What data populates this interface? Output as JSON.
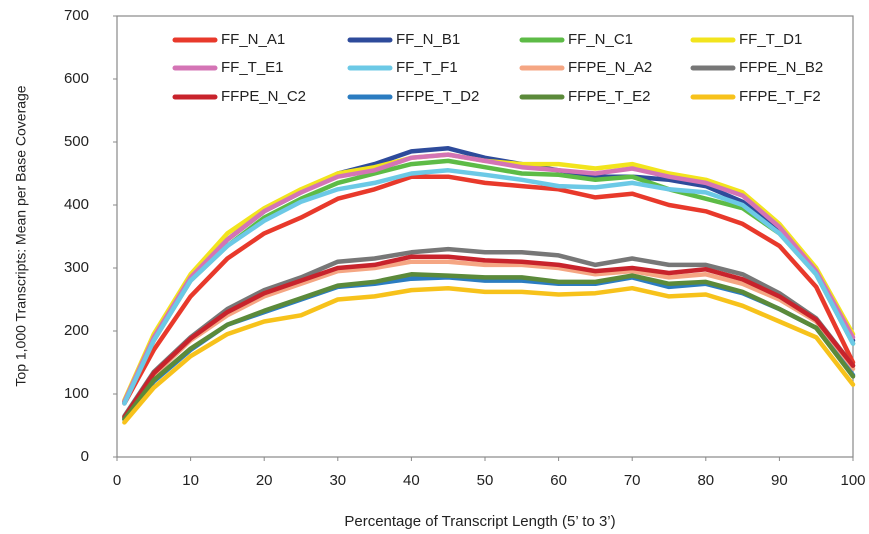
{
  "chart_data": {
    "type": "line",
    "x_label": "Percentage of Transcript Length (5’ to 3’)",
    "y_label": "Top 1,000 Transcripts: Mean per Base Coverage",
    "x": [
      1,
      5,
      10,
      15,
      20,
      25,
      30,
      35,
      40,
      45,
      50,
      55,
      60,
      65,
      70,
      75,
      80,
      85,
      90,
      95,
      100
    ],
    "xlim": [
      0,
      100
    ],
    "xticks": [
      0,
      10,
      20,
      30,
      40,
      50,
      60,
      70,
      80,
      90,
      100
    ],
    "ylim": [
      0,
      700
    ],
    "yticks": [
      0,
      100,
      200,
      300,
      400,
      500,
      600,
      700
    ],
    "grid": false,
    "series": [
      {
        "name": "FF_N_A1",
        "color": "#e8392b",
        "values": [
          85,
          170,
          255,
          315,
          355,
          380,
          410,
          425,
          445,
          445,
          435,
          430,
          425,
          412,
          418,
          400,
          390,
          370,
          335,
          270,
          150
        ]
      },
      {
        "name": "FF_N_B1",
        "color": "#2e4b9b",
        "values": [
          88,
          190,
          285,
          345,
          390,
          420,
          450,
          465,
          485,
          490,
          475,
          465,
          455,
          445,
          445,
          440,
          430,
          405,
          360,
          295,
          185
        ]
      },
      {
        "name": "FF_N_C1",
        "color": "#5dbb46",
        "values": [
          88,
          185,
          280,
          335,
          380,
          410,
          435,
          450,
          465,
          470,
          460,
          450,
          448,
          440,
          445,
          425,
          410,
          395,
          355,
          290,
          180
        ]
      },
      {
        "name": "FF_T_D1",
        "color": "#f2e41d",
        "values": [
          90,
          195,
          290,
          355,
          395,
          425,
          450,
          460,
          475,
          480,
          470,
          465,
          465,
          458,
          465,
          450,
          440,
          420,
          370,
          300,
          195
        ]
      },
      {
        "name": "FF_T_E1",
        "color": "#d474b5",
        "values": [
          88,
          190,
          285,
          345,
          390,
          420,
          445,
          455,
          475,
          480,
          470,
          460,
          455,
          450,
          458,
          445,
          435,
          415,
          365,
          295,
          190
        ]
      },
      {
        "name": "FF_T_F1",
        "color": "#6cc9e6",
        "values": [
          85,
          185,
          280,
          335,
          375,
          405,
          425,
          435,
          450,
          455,
          448,
          440,
          430,
          428,
          435,
          425,
          420,
          400,
          355,
          290,
          180
        ]
      },
      {
        "name": "FFPE_N_A2",
        "color": "#f5a683",
        "values": [
          62,
          130,
          185,
          225,
          255,
          275,
          295,
          300,
          310,
          310,
          305,
          305,
          300,
          290,
          295,
          285,
          290,
          275,
          250,
          215,
          140
        ]
      },
      {
        "name": "FFPE_N_B2",
        "color": "#777777",
        "values": [
          65,
          135,
          190,
          235,
          265,
          285,
          310,
          315,
          325,
          330,
          325,
          325,
          320,
          305,
          315,
          305,
          305,
          290,
          260,
          220,
          145
        ]
      },
      {
        "name": "FFPE_N_C2",
        "color": "#c8232c",
        "values": [
          63,
          133,
          188,
          230,
          260,
          280,
          300,
          305,
          318,
          318,
          312,
          310,
          305,
          295,
          300,
          292,
          298,
          282,
          255,
          218,
          145
        ]
      },
      {
        "name": "FFPE_T_D2",
        "color": "#2b7cc1",
        "values": [
          60,
          120,
          170,
          210,
          230,
          250,
          270,
          275,
          283,
          285,
          280,
          280,
          275,
          275,
          285,
          270,
          275,
          260,
          235,
          205,
          130
        ]
      },
      {
        "name": "FFPE_T_E2",
        "color": "#5b8a3a",
        "values": [
          60,
          122,
          172,
          210,
          232,
          252,
          272,
          278,
          290,
          288,
          285,
          285,
          278,
          278,
          288,
          275,
          278,
          262,
          235,
          205,
          128
        ]
      },
      {
        "name": "FFPE_T_F2",
        "color": "#f7c21b",
        "values": [
          55,
          110,
          160,
          195,
          215,
          225,
          250,
          255,
          265,
          268,
          262,
          262,
          258,
          260,
          268,
          255,
          258,
          240,
          215,
          190,
          115
        ]
      }
    ]
  }
}
